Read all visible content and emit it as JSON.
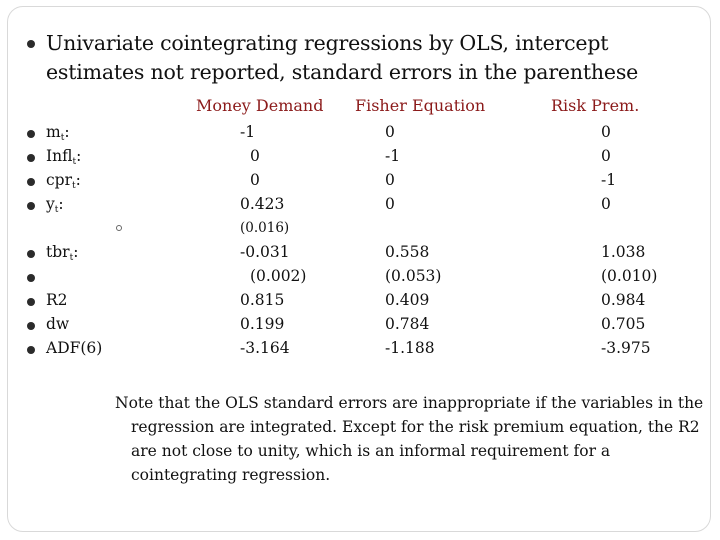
{
  "title": "Univariate cointegrating regressions by OLS, intercept estimates not reported, standard errors in the parenthese",
  "headers": [
    "Money Demand",
    "Fisher Equation",
    "Risk Prem."
  ],
  "rows": [
    {
      "label": "m",
      "sub": "t",
      "suffix": ":",
      "money": "-1",
      "fisher": "0",
      "risk": "0"
    },
    {
      "label": "Infl",
      "sub": "t",
      "suffix": ":",
      "money": "0",
      "fisher": "-1",
      "risk": "0"
    },
    {
      "label": "cpr",
      "sub": "t",
      "suffix": ":",
      "money": "0",
      "fisher": "0",
      "risk": "-1"
    },
    {
      "label": "y",
      "sub": "t",
      "suffix": ":",
      "money": "0.423",
      "fisher": "0",
      "risk": "0"
    },
    {
      "label": "",
      "sub": "",
      "suffix": "",
      "money": "(0.016)",
      "fisher": "",
      "risk": ""
    },
    {
      "label": "tbr",
      "sub": "t",
      "suffix": ":",
      "money": "-0.031",
      "fisher": "0.558",
      "risk": "1.038"
    },
    {
      "label": "",
      "sub": "",
      "suffix": "",
      "money": "(0.002)",
      "fisher": "(0.053)",
      "risk": "(0.010)"
    },
    {
      "label": "R2",
      "sub": "",
      "suffix": "",
      "money": "0.815",
      "fisher": "0.409",
      "risk": "0.984"
    },
    {
      "label": "dw",
      "sub": "",
      "suffix": "",
      "money": "0.199",
      "fisher": "0.784",
      "risk": "0.705"
    },
    {
      "label": "ADF(6)",
      "sub": "",
      "suffix": "",
      "money": "-3.164",
      "fisher": "-1.188",
      "risk": "-3.975"
    }
  ],
  "note": "Note that the OLS standard errors are inappropriate if the variables in the regression are integrated. Except for the risk premium equation, the R2 are not close to unity, which is an informal requirement for a cointegrating regression."
}
